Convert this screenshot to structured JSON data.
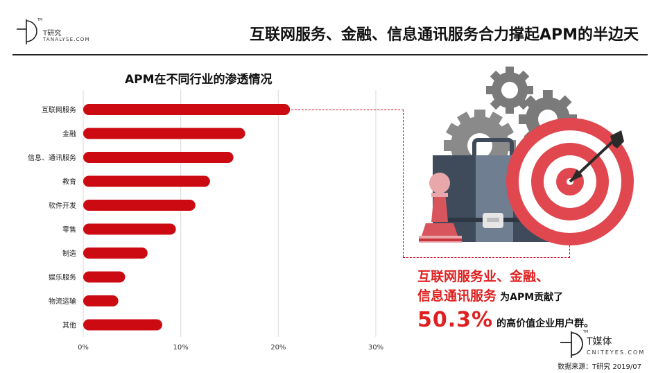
{
  "brand_top": {
    "name_cn": "T研究",
    "name_en": "TANALYSE.COM",
    "tm": "TM"
  },
  "page_title": "互联网服务、金融、信息通讯服务合力撑起APM的半边天",
  "chart_data": {
    "type": "bar",
    "orientation": "horizontal",
    "title": "APM在不同行业的渗透情况",
    "categories": [
      "互联网服务",
      "金融",
      "信息、通讯服务",
      "教育",
      "软件开发",
      "零售",
      "制造",
      "娱乐服务",
      "物流运输",
      "其他"
    ],
    "values": [
      21.2,
      16.6,
      15.4,
      13.0,
      11.5,
      9.5,
      6.6,
      4.3,
      3.6,
      8.1
    ],
    "xlim": [
      0,
      30
    ],
    "x_ticks": [
      "0%",
      "10%",
      "20%",
      "30%"
    ],
    "xlabel": "",
    "ylabel": "",
    "grid": "vertical",
    "bar_color": "#cc0a12"
  },
  "callout": {
    "line1": "互联网服务业、金融、",
    "line2_red": "信息通讯服务",
    "line2_black": "为APM贡献了",
    "percent": "50.3%",
    "line3_black": "的高价值企业用户群。"
  },
  "brand_bottom": {
    "name_cn": "T媒体",
    "name_en": "CNITEYES.COM",
    "tm": "TM"
  },
  "source": "数据来源：T研究 2019/07",
  "colors": {
    "accent_red": "#e02020",
    "bar_red": "#cc0a12",
    "gear_gray": "#7a7a7a",
    "case_dark": "#3f4a5a",
    "case_mid": "#6f7e91",
    "target_red": "#e0474f"
  },
  "icons": [
    "logo-mark-icon",
    "gear-icon",
    "briefcase-icon",
    "chess-pawn-icon",
    "target-icon",
    "arrow-icon"
  ]
}
